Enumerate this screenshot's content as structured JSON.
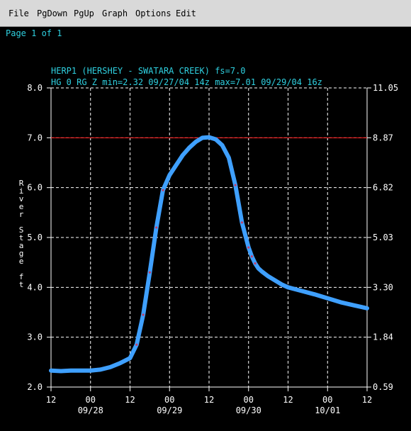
{
  "menu": {
    "items": [
      "File",
      "PgDown",
      "PgUp",
      "Graph",
      "Options",
      "Edit"
    ]
  },
  "page_label": "Page 1 of 1",
  "chart_data": {
    "type": "line",
    "title": "HERP1 (HERSHEY - SWATARA CREEK) fs=7.0",
    "subtitle": "HG 0 RG Z min=2.32 09/27/04 14z max=7.01 09/29/04 16z",
    "ylabel": "River Stage ft",
    "ylim": [
      2.0,
      8.0
    ],
    "yticks": [
      "2.0",
      "3.0",
      "4.0",
      "5.0",
      "6.0",
      "7.0",
      "8.0"
    ],
    "y2ticks": [
      "0.59",
      "1.84",
      "3.30",
      "5.03",
      "6.82",
      "8.87",
      "11.05"
    ],
    "xticks_hours": [
      "12",
      "00",
      "12",
      "00",
      "12",
      "00",
      "12",
      "00",
      "12"
    ],
    "xticks_dates": [
      "09/28",
      "09/29",
      "09/30",
      "10/01"
    ],
    "xlim_hours": [
      0,
      96
    ],
    "flood_stage": 7.0,
    "colors": {
      "line": "#3fa0ff",
      "forecast_dots": "#c0406a",
      "flood_line": "#ff1a1a",
      "grid": "#ffffff",
      "text": "#2fd0e0"
    },
    "series": [
      {
        "values_x": [
          0,
          3,
          6,
          9,
          12,
          15,
          18,
          21,
          24,
          26,
          28,
          30,
          32,
          34,
          36,
          38,
          39,
          40,
          42,
          44,
          46,
          48,
          50,
          52,
          54,
          56,
          58,
          60,
          61,
          62,
          63,
          64,
          66,
          68,
          70,
          72,
          76,
          80,
          84,
          88,
          92,
          96
        ],
        "values_y": [
          2.33,
          2.32,
          2.33,
          2.33,
          2.33,
          2.35,
          2.4,
          2.48,
          2.58,
          2.85,
          3.45,
          4.3,
          5.2,
          5.95,
          6.25,
          6.45,
          6.55,
          6.65,
          6.8,
          6.92,
          7.0,
          7.01,
          6.97,
          6.85,
          6.6,
          6.05,
          5.3,
          4.8,
          4.62,
          4.48,
          4.38,
          4.32,
          4.22,
          4.14,
          4.06,
          4.0,
          3.93,
          3.86,
          3.78,
          3.7,
          3.64,
          3.58
        ]
      }
    ]
  }
}
